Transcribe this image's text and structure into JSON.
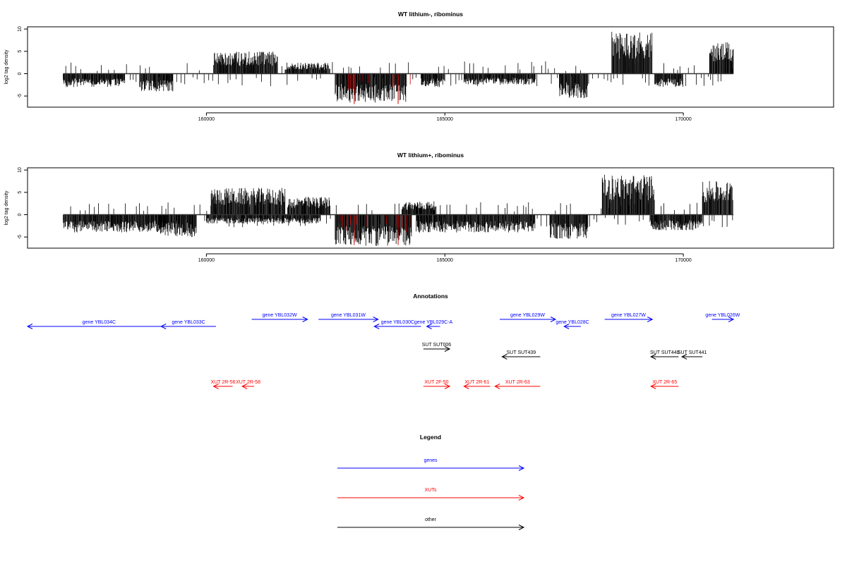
{
  "chart_data": [
    {
      "type": "bar",
      "title": "WT lithium-, ribominus",
      "ylabel": "log2 tag density",
      "xlabel": "",
      "xlim": [
        156250,
        173150
      ],
      "ylim": [
        -7.5,
        10.5
      ],
      "xticks": [
        160000,
        165000,
        170000
      ],
      "yticks": [
        -5,
        0,
        5,
        10
      ],
      "baseline_range": [
        157000,
        171050
      ],
      "colors": {
        "bar": "#000000",
        "highlight": "#cc0000",
        "baseline": "#333333"
      },
      "positive_blocks": [
        {
          "x": [
            160150,
            161500
          ],
          "peak": 5.0
        },
        {
          "x": [
            161650,
            162600
          ],
          "peak": 2.5
        },
        {
          "x": [
            168500,
            169350
          ],
          "peak": 9.5
        },
        {
          "x": [
            170550,
            171050
          ],
          "peak": 7.0
        }
      ],
      "negative_blocks": [
        {
          "x": [
            157000,
            158300
          ],
          "peak": -3.0
        },
        {
          "x": [
            158600,
            159300
          ],
          "peak": -4.0
        },
        {
          "x": [
            162700,
            164200
          ],
          "peak": -6.5
        },
        {
          "x": [
            164500,
            165000
          ],
          "peak": -3.0
        },
        {
          "x": [
            165400,
            166900
          ],
          "peak": -2.5
        },
        {
          "x": [
            167400,
            168000
          ],
          "peak": -5.5
        },
        {
          "x": [
            169400,
            170000
          ],
          "peak": -3.0
        }
      ],
      "highlight_bars": [
        {
          "x": 163100,
          "value": -6.8
        },
        {
          "x": 164020,
          "value": -6.8
        }
      ]
    },
    {
      "type": "bar",
      "title": "WT lithium+, ribominus",
      "ylabel": "log2 tag density",
      "xlabel": "",
      "xlim": [
        156250,
        173150
      ],
      "ylim": [
        -7.5,
        10.5
      ],
      "xticks": [
        160000,
        165000,
        170000
      ],
      "yticks": [
        -5,
        0,
        5,
        10
      ],
      "baseline_range": [
        157000,
        171050
      ],
      "colors": {
        "bar": "#000000",
        "highlight": "#cc0000",
        "baseline": "#333333"
      },
      "positive_blocks": [
        {
          "x": [
            160100,
            161650
          ],
          "peak": 6.0
        },
        {
          "x": [
            161700,
            162600
          ],
          "peak": 4.0
        },
        {
          "x": [
            164100,
            164800
          ],
          "peak": 3.0
        },
        {
          "x": [
            168300,
            169400
          ],
          "peak": 9.0
        },
        {
          "x": [
            170400,
            171050
          ],
          "peak": 7.5
        }
      ],
      "negative_blocks": [
        {
          "x": [
            157000,
            159200
          ],
          "peak": -4.0
        },
        {
          "x": [
            159000,
            159800
          ],
          "peak": -5.0
        },
        {
          "x": [
            160000,
            162400
          ],
          "peak": -2.0
        },
        {
          "x": [
            162700,
            164300
          ],
          "peak": -7.0
        },
        {
          "x": [
            164400,
            166900
          ],
          "peak": -4.0
        },
        {
          "x": [
            167200,
            168000
          ],
          "peak": -5.5
        },
        {
          "x": [
            169300,
            170400
          ],
          "peak": -3.5
        }
      ],
      "highlight_bars": [
        {
          "x": 163100,
          "value": -6.8
        },
        {
          "x": 164020,
          "value": -6.8
        }
      ]
    }
  ],
  "annotations": {
    "title": "Annotations",
    "features": [
      {
        "label": "gene YBL034C",
        "start": 156250,
        "end": 159250,
        "strand": "-",
        "kind": "gene",
        "row": 0
      },
      {
        "label": "gene YBL033C",
        "start": 159050,
        "end": 160200,
        "strand": "-",
        "kind": "gene",
        "row": 0
      },
      {
        "label": "gene YBL032W",
        "start": 160950,
        "end": 162120,
        "strand": "+",
        "kind": "gene",
        "row": -1
      },
      {
        "label": "gene YBL031W",
        "start": 162350,
        "end": 163600,
        "strand": "+",
        "kind": "gene",
        "row": -1
      },
      {
        "label": "gene YBL030C",
        "start": 163520,
        "end": 164500,
        "strand": "-",
        "kind": "gene",
        "row": 0
      },
      {
        "label": "gene YBL029C-A",
        "start": 164620,
        "end": 164900,
        "strand": "-",
        "kind": "gene",
        "row": 0
      },
      {
        "label": "gene YBL029W",
        "start": 166150,
        "end": 167320,
        "strand": "+",
        "kind": "gene",
        "row": -1
      },
      {
        "label": "gene YBL028C",
        "start": 167500,
        "end": 167850,
        "strand": "-",
        "kind": "gene",
        "row": 0
      },
      {
        "label": "gene YBL027W",
        "start": 168350,
        "end": 169350,
        "strand": "+",
        "kind": "gene",
        "row": -1
      },
      {
        "label": "gene YBL026W",
        "start": 170600,
        "end": 171050,
        "strand": "+",
        "kind": "gene",
        "row": -1
      },
      {
        "label": "SUT SUT006",
        "start": 164550,
        "end": 165100,
        "strand": "+",
        "kind": "other",
        "row": 1
      },
      {
        "label": "SUT SUT439",
        "start": 166200,
        "end": 167000,
        "strand": "-",
        "kind": "other",
        "row": 2
      },
      {
        "label": "SUT SUT440",
        "start": 169320,
        "end": 169900,
        "strand": "-",
        "kind": "other",
        "row": 2
      },
      {
        "label": "SUT SUT441",
        "start": 169970,
        "end": 170400,
        "strand": "-",
        "kind": "other",
        "row": 2
      },
      {
        "label": "XUT 2R-56",
        "start": 160150,
        "end": 160550,
        "strand": "-",
        "kind": "XUT",
        "row": 3
      },
      {
        "label": "XUT 2R-58",
        "start": 160750,
        "end": 161000,
        "strand": "-",
        "kind": "XUT",
        "row": 3
      },
      {
        "label": "XUT 2F-50",
        "start": 164550,
        "end": 165100,
        "strand": "+",
        "kind": "XUT",
        "row": 3
      },
      {
        "label": "XUT 2R-61",
        "start": 165400,
        "end": 165950,
        "strand": "-",
        "kind": "XUT",
        "row": 3
      },
      {
        "label": "XUT 2R-63",
        "start": 166050,
        "end": 167000,
        "strand": "-",
        "kind": "XUT",
        "row": 3
      },
      {
        "label": "XUT 2R-65",
        "start": 169320,
        "end": 169900,
        "strand": "-",
        "kind": "XUT",
        "row": 3
      }
    ]
  },
  "legend": {
    "title": "Legend",
    "entries": [
      {
        "label": "genes",
        "color": "#0000ff"
      },
      {
        "label": "XUTs",
        "color": "#ff0000"
      },
      {
        "label": "other",
        "color": "#000000"
      }
    ]
  },
  "colors": {
    "gene": "#0000ff",
    "XUT": "#ff0000",
    "other": "#000000"
  }
}
